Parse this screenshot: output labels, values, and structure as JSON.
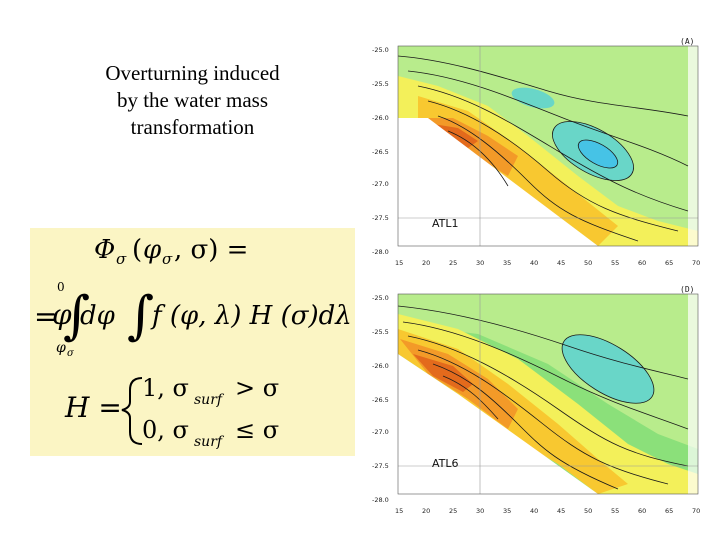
{
  "title_lines": [
    "Overturning induced",
    "by the water mass",
    "transformation"
  ],
  "formula": {
    "line1_lhs": "Φ",
    "line1_sub": "σ",
    "line1_args_open": "(",
    "line1_phi": "φ",
    "line1_phi_sub": "σ",
    "line1_comma": ", σ) =",
    "line2_eq": "=",
    "upper_limit": "φ",
    "upper_limit_sub": "0",
    "lower_limit": "φ",
    "lower_limit_sub": "σ",
    "integrand_1": "dφ",
    "integrand_2": "f (φ, λ) H (σ)dλ ,",
    "h_label": "H =",
    "case1": "1, σ",
    "case1_sub": "surf",
    "case1_rel": "> σ",
    "case2": "0, σ",
    "case2_sub": "surf",
    "case2_rel": "≤ σ"
  },
  "panels": [
    {
      "tag": "(A)",
      "label": "ATL1",
      "y_ticks": [
        "-25.0",
        "-25.5",
        "-26.0",
        "-26.5",
        "-27.0",
        "-27.5",
        "-28.0"
      ],
      "x_ticks": [
        "15",
        "20",
        "25",
        "30",
        "35",
        "40",
        "45",
        "50",
        "55",
        "60",
        "65",
        "70"
      ]
    },
    {
      "tag": "(D)",
      "label": "ATL6",
      "y_ticks": [
        "-25.0",
        "-25.5",
        "-26.0",
        "-26.5",
        "-27.0",
        "-27.5",
        "-28.0"
      ],
      "x_ticks": [
        "15",
        "20",
        "25",
        "30",
        "35",
        "40",
        "45",
        "50",
        "55",
        "60",
        "65",
        "70"
      ]
    }
  ],
  "colors": {
    "green": "#8be07a",
    "light_green": "#b8ec8c",
    "yellow": "#f3f05a",
    "yellow_orange": "#f8c830",
    "orange": "#f39a28",
    "dark_orange": "#e36a1c",
    "cyan": "#69d6c8",
    "blue_cyan": "#46c3e6",
    "formula_bg": "#fbf5c4"
  }
}
